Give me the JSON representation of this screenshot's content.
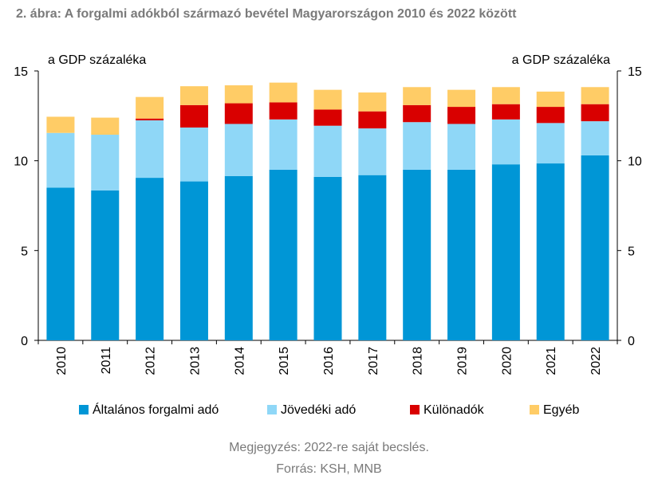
{
  "title": "2. ábra: A forgalmi adókból származó bevétel Magyarországon 2010 és 2022 között",
  "note": "Megjegyzés: 2022-re saját becslés.",
  "source": "Forrás: KSH, MNB",
  "chart_data": {
    "type": "bar",
    "stacked": true,
    "categories": [
      "2010",
      "2011",
      "2012",
      "2013",
      "2014",
      "2015",
      "2016",
      "2017",
      "2018",
      "2019",
      "2020",
      "2021",
      "2022"
    ],
    "ylabel_left": "a GDP százaléka",
    "ylabel_right": "a GDP százaléka",
    "ylim": [
      0,
      15
    ],
    "yticks": [
      0,
      5,
      10,
      15
    ],
    "grid": false,
    "legend_position": "bottom",
    "series": [
      {
        "name": "Általános forgalmi adó",
        "color": "#0096d6",
        "values": [
          8.5,
          8.35,
          9.05,
          8.85,
          9.15,
          9.5,
          9.1,
          9.2,
          9.5,
          9.5,
          9.8,
          9.85,
          10.3
        ]
      },
      {
        "name": "Jövedéki adó",
        "color": "#8fd7f7",
        "values": [
          3.05,
          3.1,
          3.2,
          3.0,
          2.9,
          2.8,
          2.85,
          2.6,
          2.65,
          2.55,
          2.5,
          2.25,
          1.9
        ]
      },
      {
        "name": "Különadók",
        "color": "#d90000",
        "values": [
          0.0,
          0.0,
          0.1,
          1.25,
          1.15,
          0.95,
          0.9,
          0.95,
          0.95,
          0.95,
          0.85,
          0.9,
          0.95
        ]
      },
      {
        "name": "Egyéb",
        "color": "#ffcc66",
        "values": [
          0.9,
          0.95,
          1.2,
          1.05,
          1.0,
          1.1,
          1.1,
          1.05,
          1.0,
          0.95,
          0.95,
          0.85,
          0.95
        ]
      }
    ]
  }
}
